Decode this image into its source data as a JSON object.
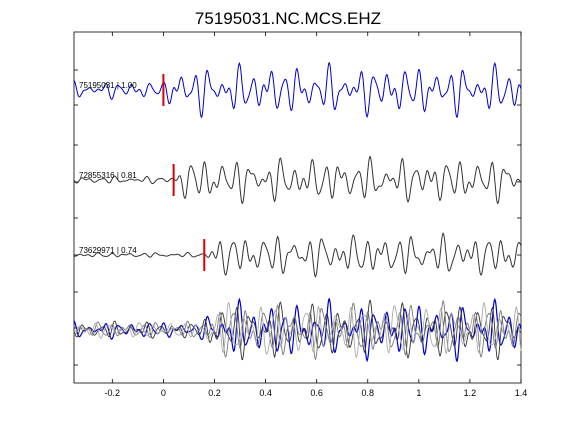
{
  "chart_data": {
    "type": "line",
    "title": "75195031.NC.MCS.EHZ",
    "xlabel": "",
    "ylabel": "",
    "xlim": [
      -0.35,
      1.4
    ],
    "xticks": [
      -0.2,
      0,
      0.2,
      0.4,
      0.6,
      0.8,
      1,
      1.2,
      1.4
    ],
    "xtick_labels": [
      "-0.2",
      "0",
      "0.2",
      "0.4",
      "0.6",
      "0.8",
      "1",
      "1.2",
      "1.4"
    ],
    "grid": false,
    "traces": [
      {
        "label": "75195031 | 1.00",
        "color": "#0000cc",
        "pick_time": 0.0,
        "pick_color": "#dd0000",
        "amp_before": 0.35,
        "amp_after": 1.0,
        "seed": 1
      },
      {
        "label": "72855316 | 0.81",
        "color": "#333333",
        "pick_time": 0.04,
        "pick_color": "#dd0000",
        "amp_before": 0.15,
        "amp_after": 0.9,
        "seed": 2
      },
      {
        "label": "73629971 | 0.74",
        "color": "#333333",
        "pick_time": 0.16,
        "pick_color": "#dd0000",
        "amp_before": 0.1,
        "amp_after": 0.85,
        "seed": 3
      }
    ],
    "overlay": {
      "series_colors": [
        "#0000cc",
        "#333333",
        "#777777",
        "#aaaaaa"
      ]
    }
  }
}
